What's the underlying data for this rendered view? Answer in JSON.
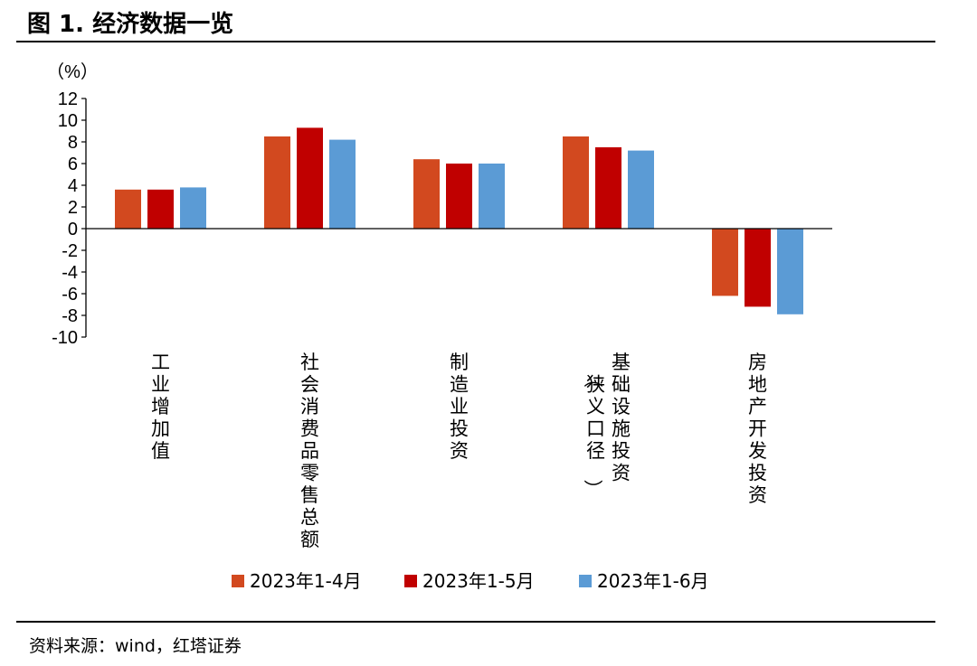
{
  "figure": {
    "title": "图 1. 经济数据一览",
    "source": "资料来源：wind，红塔证券"
  },
  "colors": {
    "series1": "#D2491F",
    "series2": "#C00000",
    "series3": "#5B9BD5"
  },
  "chart_data": {
    "type": "bar",
    "ylabel": "（%）",
    "ylim": [
      -10,
      12
    ],
    "yticks": [
      12,
      10,
      8,
      6,
      4,
      2,
      0,
      -2,
      -4,
      -6,
      -8,
      -10
    ],
    "grid": false,
    "legend_position": "bottom",
    "categories": [
      {
        "label": "工业增加值",
        "lines": [
          "工业增加值"
        ]
      },
      {
        "label": "社会消费品零售总额",
        "lines": [
          "社会消费品零售总额"
        ]
      },
      {
        "label": "制造业投资",
        "lines": [
          "制造业投资"
        ]
      },
      {
        "label": "基础设施投资（狭义口径）",
        "lines": [
          "（狭义口径）",
          "基础设施投资"
        ]
      },
      {
        "label": "房地产开发投资",
        "lines": [
          "房地产开发投资"
        ]
      }
    ],
    "series": [
      {
        "name": "2023年1-4月",
        "color": "#D2491F",
        "values": [
          3.6,
          8.5,
          6.4,
          8.5,
          -6.2
        ]
      },
      {
        "name": "2023年1-5月",
        "color": "#C00000",
        "values": [
          3.6,
          9.3,
          6.0,
          7.5,
          -7.2
        ]
      },
      {
        "name": "2023年1-6月",
        "color": "#5B9BD5",
        "values": [
          3.8,
          8.2,
          6.0,
          7.2,
          -7.9
        ]
      }
    ]
  }
}
